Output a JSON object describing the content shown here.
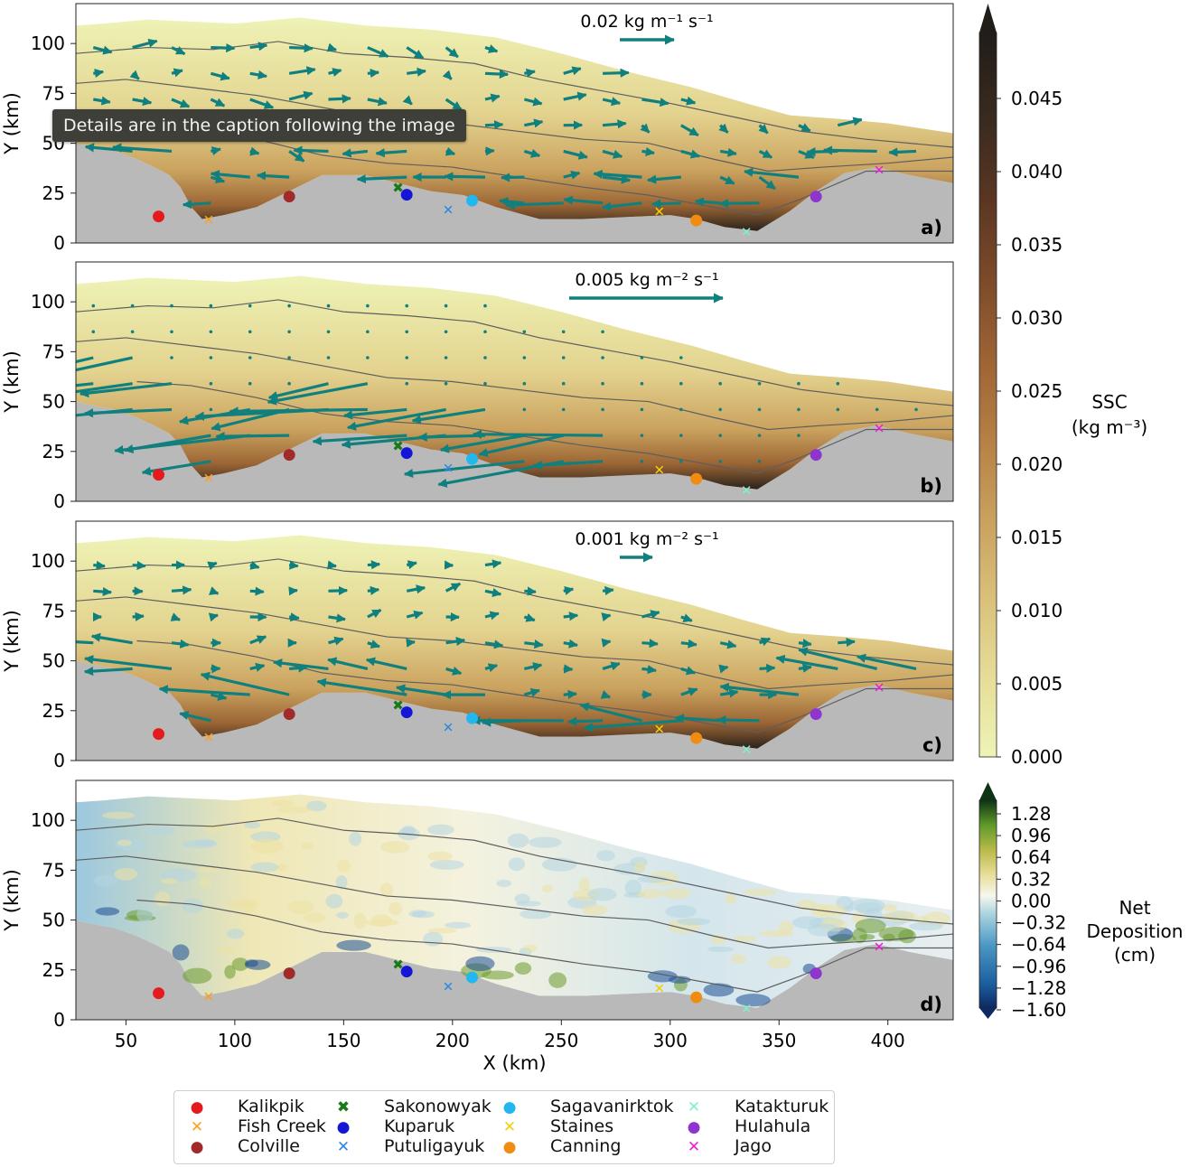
{
  "tooltip": "Details are in the caption following the image",
  "chart_data": [
    {
      "type": "heatmap",
      "panel": "a)",
      "ylabel": "Y (km)",
      "ylim": [
        0,
        120
      ],
      "xlim": [
        27,
        430
      ],
      "yticks": [
        0,
        25,
        50,
        75,
        100
      ],
      "scale_label": "0.02 kg m⁻¹ s⁻¹",
      "color_variable": "SSC"
    },
    {
      "type": "heatmap",
      "panel": "b)",
      "ylabel": "Y (km)",
      "ylim": [
        0,
        120
      ],
      "xlim": [
        27,
        430
      ],
      "yticks": [
        0,
        25,
        50,
        75,
        100
      ],
      "scale_label": "0.005 kg m⁻² s⁻¹",
      "color_variable": "SSC"
    },
    {
      "type": "heatmap",
      "panel": "c)",
      "ylabel": "Y (km)",
      "ylim": [
        0,
        120
      ],
      "xlim": [
        27,
        430
      ],
      "yticks": [
        0,
        25,
        50,
        75,
        100
      ],
      "scale_label": "0.001 kg m⁻² s⁻¹",
      "color_variable": "SSC"
    },
    {
      "type": "heatmap",
      "panel": "d)",
      "ylabel": "Y (km)",
      "xlabel": "X (km)",
      "ylim": [
        0,
        120
      ],
      "xlim": [
        27,
        430
      ],
      "yticks": [
        0,
        25,
        50,
        75,
        100
      ],
      "xticks": [
        50,
        100,
        150,
        200,
        250,
        300,
        350,
        400
      ],
      "color_variable": "Net Deposition"
    }
  ],
  "colorbar_ssc": {
    "label_line1": "SSC",
    "label_line2": "(kg m⁻³)",
    "range": [
      0,
      0.048
    ],
    "ticks": [
      "0.000",
      "0.005",
      "0.010",
      "0.015",
      "0.020",
      "0.025",
      "0.030",
      "0.035",
      "0.040",
      "0.045"
    ],
    "colors": [
      "#eef3b6",
      "#e6dd98",
      "#d9c07a",
      "#c9a05d",
      "#b67f44",
      "#9d6334",
      "#7c4a29",
      "#5a3622",
      "#3a2a1f",
      "#211d19"
    ]
  },
  "colorbar_dep": {
    "label_line1": "Net",
    "label_line2": "Deposition",
    "label_line3": "(cm)",
    "range": [
      -1.6,
      1.4
    ],
    "ticks": [
      "1.28",
      "0.96",
      "0.64",
      "0.32",
      "0.00",
      "−0.32",
      "−0.64",
      "−0.96",
      "−1.28",
      "−1.60"
    ],
    "colors": [
      "#0d2a63",
      "#1c5fa0",
      "#4b97c3",
      "#a8d3df",
      "#f6f6ee",
      "#e9de9a",
      "#b9ba4a",
      "#5f9a2a",
      "#1f5c22",
      "#0f3315"
    ]
  },
  "rivers": [
    {
      "name": "Kalikpik",
      "x": 65,
      "y": 14,
      "marker": "circle",
      "color": "#e41a1c"
    },
    {
      "name": "Fish Creek",
      "x": 88,
      "y": 12,
      "marker": "x",
      "color": "#ff9f1c"
    },
    {
      "name": "Colville",
      "x": 125,
      "y": 24,
      "marker": "circle",
      "color": "#a12a2a"
    },
    {
      "name": "Sakonowyak",
      "x": 175,
      "y": 28,
      "marker": "X",
      "color": "#1a7a1a"
    },
    {
      "name": "Kuparuk",
      "x": 179,
      "y": 25,
      "marker": "circle",
      "color": "#1515d6"
    },
    {
      "name": "Putuligayuk",
      "x": 198,
      "y": 17,
      "marker": "x",
      "color": "#2f86e8"
    },
    {
      "name": "Sagavanirktok",
      "x": 209,
      "y": 22,
      "marker": "circle",
      "color": "#22b7ee"
    },
    {
      "name": "Staines",
      "x": 295,
      "y": 16,
      "marker": "x",
      "color": "#f2cf0a"
    },
    {
      "name": "Canning",
      "x": 312,
      "y": 12,
      "marker": "circle",
      "color": "#f08c12"
    },
    {
      "name": "Katakturuk",
      "x": 335,
      "y": 6,
      "marker": "x",
      "color": "#7ff0c6"
    },
    {
      "name": "Hulahula",
      "x": 367,
      "y": 24,
      "marker": "circle",
      "color": "#8e35cf"
    },
    {
      "name": "Jago",
      "x": 396,
      "y": 37,
      "marker": "x",
      "color": "#f01bd8"
    }
  ]
}
